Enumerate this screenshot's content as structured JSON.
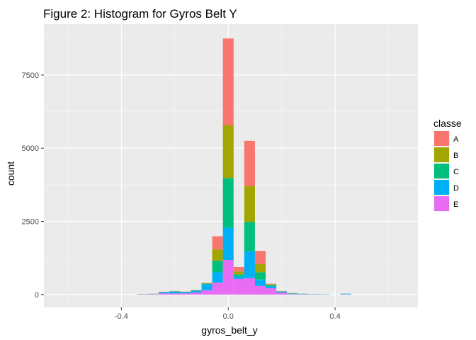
{
  "chart_data": {
    "type": "bar",
    "subtype": "stacked-histogram",
    "title": "Figure 2: Histogram for  Gyros Belt Y",
    "xlabel": "gyros_belt_y",
    "ylabel": "count",
    "xlim": [
      -0.69,
      0.71
    ],
    "ylim": [
      -440,
      9240
    ],
    "xticks": [
      -0.4,
      0.0,
      0.4
    ],
    "xtick_labels": [
      "-0.4",
      "0.0",
      "0.4"
    ],
    "yticks": [
      0,
      2500,
      5000,
      7500
    ],
    "ytick_labels": [
      "0",
      "2500",
      "5000",
      "7500"
    ],
    "grid": true,
    "binwidth": 0.04,
    "legend_title": "classe",
    "legend_position": "right",
    "series": [
      {
        "name": "A",
        "color": "#F8766D"
      },
      {
        "name": "B",
        "color": "#A3A500"
      },
      {
        "name": "C",
        "color": "#00BF7D"
      },
      {
        "name": "D",
        "color": "#00B0F6"
      },
      {
        "name": "E",
        "color": "#E76BF3"
      }
    ],
    "bins": [
      {
        "x": -0.32,
        "values": [
          3,
          3,
          3,
          3,
          8
        ]
      },
      {
        "x": -0.28,
        "values": [
          5,
          5,
          5,
          5,
          10
        ]
      },
      {
        "x": -0.24,
        "values": [
          5,
          5,
          5,
          40,
          40
        ]
      },
      {
        "x": -0.2,
        "values": [
          5,
          5,
          10,
          60,
          40
        ]
      },
      {
        "x": -0.16,
        "values": [
          5,
          5,
          10,
          40,
          40
        ]
      },
      {
        "x": -0.12,
        "values": [
          5,
          10,
          10,
          60,
          70
        ]
      },
      {
        "x": -0.08,
        "values": [
          10,
          20,
          20,
          200,
          150
        ]
      },
      {
        "x": -0.04,
        "values": [
          450,
          380,
          400,
          350,
          410
        ]
      },
      {
        "x": 0.0,
        "values": [
          2970,
          1800,
          1700,
          1100,
          1180
        ]
      },
      {
        "x": 0.04,
        "values": [
          150,
          100,
          80,
          80,
          530
        ]
      },
      {
        "x": 0.08,
        "values": [
          1550,
          1220,
          1000,
          920,
          560
        ]
      },
      {
        "x": 0.12,
        "values": [
          450,
          280,
          250,
          220,
          290
        ]
      },
      {
        "x": 0.16,
        "values": [
          20,
          20,
          40,
          70,
          220
        ]
      },
      {
        "x": 0.2,
        "values": [
          5,
          5,
          10,
          30,
          70
        ]
      },
      {
        "x": 0.24,
        "values": [
          5,
          5,
          5,
          20,
          15
        ]
      },
      {
        "x": 0.28,
        "values": [
          2,
          2,
          5,
          10,
          10
        ]
      },
      {
        "x": 0.32,
        "values": [
          2,
          2,
          2,
          5,
          5
        ]
      },
      {
        "x": 0.36,
        "values": [
          0,
          0,
          2,
          5,
          3
        ]
      },
      {
        "x": 0.44,
        "values": [
          0,
          0,
          5,
          15,
          10
        ]
      }
    ]
  }
}
